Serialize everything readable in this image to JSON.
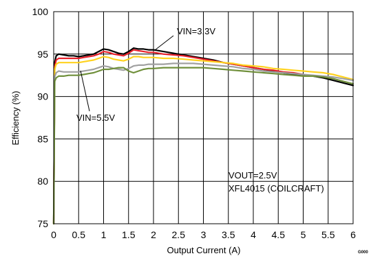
{
  "chart_data": {
    "type": "line",
    "xlabel": "Output Current (A)",
    "ylabel": "Efficiency (%)",
    "xlim": [
      0,
      6
    ],
    "ylim": [
      75,
      100
    ],
    "xticks": [
      "0",
      "0.5",
      "1",
      "1.5",
      "2",
      "2.5",
      "3",
      "3.5",
      "4",
      "4.5",
      "5",
      "5.5",
      "6"
    ],
    "yticks": [
      "75",
      "80",
      "85",
      "90",
      "95",
      "100"
    ],
    "grid": true,
    "legend": "none",
    "annotations": {
      "vin_high": "VIN=3.3V",
      "vin_low": "VIN=5.5V",
      "conditions_line1": "VOUT=2.5V",
      "conditions_line2": "XFL4015 (COILCRAFT)",
      "figure_code": "G000"
    },
    "series": [
      {
        "color": "#000000",
        "x": [
          0.0,
          0.02,
          0.05,
          0.1,
          0.2,
          0.3,
          0.4,
          0.5,
          0.6,
          0.7,
          0.8,
          0.9,
          1.0,
          1.1,
          1.2,
          1.3,
          1.4,
          1.5,
          1.6,
          1.7,
          1.8,
          1.9,
          2.0,
          2.2,
          2.4,
          2.6,
          2.8,
          3.0,
          3.2,
          3.4,
          3.6,
          3.8,
          4.0,
          4.2,
          4.4,
          4.6,
          4.8,
          5.0,
          5.2,
          5.4,
          5.6,
          5.8,
          6.0
        ],
        "y": [
          75.0,
          94.0,
          94.8,
          95.0,
          94.9,
          94.8,
          94.8,
          94.7,
          94.8,
          94.9,
          95.0,
          95.3,
          95.6,
          95.5,
          95.3,
          95.1,
          95.0,
          95.3,
          95.7,
          95.6,
          95.6,
          95.5,
          95.5,
          95.3,
          95.1,
          94.9,
          94.7,
          94.5,
          94.3,
          94.0,
          93.8,
          93.6,
          93.4,
          93.2,
          93.0,
          92.8,
          92.6,
          92.5,
          92.4,
          92.2,
          91.9,
          91.6,
          91.3
        ]
      },
      {
        "color": "#e8202a",
        "x": [
          0.0,
          0.02,
          0.05,
          0.1,
          0.2,
          0.3,
          0.4,
          0.5,
          0.6,
          0.7,
          0.8,
          0.9,
          1.0,
          1.1,
          1.2,
          1.3,
          1.4,
          1.5,
          1.6,
          1.7,
          1.8,
          1.9,
          2.0,
          2.2,
          2.4,
          2.6,
          2.8,
          3.0,
          3.2,
          3.4,
          3.6,
          3.8,
          4.0,
          4.2,
          4.4,
          4.6,
          4.8,
          5.0
        ],
        "y": [
          75.0,
          93.5,
          94.3,
          94.5,
          94.5,
          94.5,
          94.5,
          94.5,
          94.6,
          94.7,
          94.8,
          95.0,
          95.3,
          95.2,
          95.0,
          94.9,
          94.8,
          95.1,
          95.5,
          95.4,
          95.3,
          95.2,
          95.2,
          95.0,
          94.9,
          94.8,
          94.6,
          94.4,
          94.2,
          94.0,
          93.8,
          93.6,
          93.4,
          93.2,
          93.1,
          92.9,
          92.8,
          92.6
        ]
      },
      {
        "color": "#ffd21e",
        "x": [
          0.0,
          0.02,
          0.05,
          0.1,
          0.2,
          0.3,
          0.4,
          0.5,
          0.6,
          0.7,
          0.8,
          0.9,
          1.0,
          1.1,
          1.2,
          1.3,
          1.4,
          1.5,
          1.6,
          1.7,
          1.8,
          1.9,
          2.0,
          2.2,
          2.4,
          2.6,
          2.8,
          3.0,
          3.2,
          3.4,
          3.6,
          3.8,
          4.0,
          4.2,
          4.4,
          4.6,
          4.8,
          5.0,
          5.2,
          5.4,
          5.6,
          5.8,
          6.0
        ],
        "y": [
          75.0,
          93.2,
          93.8,
          94.0,
          94.0,
          94.0,
          94.0,
          94.0,
          94.1,
          94.2,
          94.3,
          94.5,
          94.7,
          94.6,
          94.4,
          94.3,
          94.2,
          94.4,
          94.7,
          94.7,
          94.6,
          94.6,
          94.6,
          94.5,
          94.5,
          94.4,
          94.3,
          94.2,
          94.1,
          94.0,
          93.9,
          93.7,
          93.6,
          93.5,
          93.3,
          93.2,
          93.1,
          93.0,
          92.9,
          92.8,
          92.6,
          92.3,
          92.0
        ]
      },
      {
        "color": "#a0a0a0",
        "x": [
          0.0,
          0.02,
          0.05,
          0.1,
          0.2,
          0.3,
          0.4,
          0.5,
          0.6,
          0.7,
          0.8,
          0.9,
          1.0,
          1.1,
          1.2,
          1.3,
          1.4,
          1.5,
          1.6,
          1.7,
          1.8,
          1.9,
          2.0,
          2.2,
          2.4,
          2.6,
          2.8,
          3.0,
          3.2,
          3.4,
          3.6,
          3.8,
          4.0,
          4.2,
          4.4,
          4.6,
          4.8,
          5.0,
          5.2,
          5.4,
          5.6,
          5.8,
          6.0
        ],
        "y": [
          75.0,
          92.3,
          92.8,
          93.0,
          92.9,
          92.9,
          92.9,
          92.9,
          93.0,
          93.1,
          93.2,
          93.4,
          93.6,
          93.5,
          93.3,
          93.2,
          93.1,
          93.3,
          93.6,
          93.7,
          93.7,
          93.8,
          93.8,
          93.8,
          93.9,
          93.9,
          93.9,
          93.8,
          93.7,
          93.6,
          93.5,
          93.3,
          93.2,
          93.0,
          92.9,
          92.8,
          92.7,
          92.6,
          92.5,
          92.4,
          92.3,
          92.1,
          91.9
        ]
      },
      {
        "color": "#6f8f3a",
        "x": [
          0.0,
          0.02,
          0.05,
          0.1,
          0.2,
          0.3,
          0.4,
          0.5,
          0.6,
          0.7,
          0.8,
          0.9,
          1.0,
          1.1,
          1.2,
          1.3,
          1.4,
          1.5,
          1.6,
          1.7,
          1.8,
          1.9,
          2.0,
          2.2,
          2.4,
          2.6,
          2.8,
          3.0,
          3.2,
          3.4,
          3.6,
          3.8,
          4.0,
          4.2,
          4.4,
          4.6,
          4.8,
          5.0,
          5.2,
          5.4,
          5.6,
          5.8,
          6.0
        ],
        "y": [
          75.0,
          91.8,
          92.2,
          92.4,
          92.4,
          92.5,
          92.5,
          92.5,
          92.6,
          92.7,
          92.8,
          93.0,
          93.2,
          93.2,
          93.3,
          93.4,
          93.4,
          93.0,
          92.8,
          93.0,
          93.2,
          93.3,
          93.3,
          93.4,
          93.4,
          93.4,
          93.4,
          93.4,
          93.3,
          93.2,
          93.1,
          93.0,
          92.9,
          92.8,
          92.7,
          92.6,
          92.5,
          92.4,
          92.4,
          92.3,
          92.1,
          91.8,
          91.5
        ]
      }
    ]
  }
}
